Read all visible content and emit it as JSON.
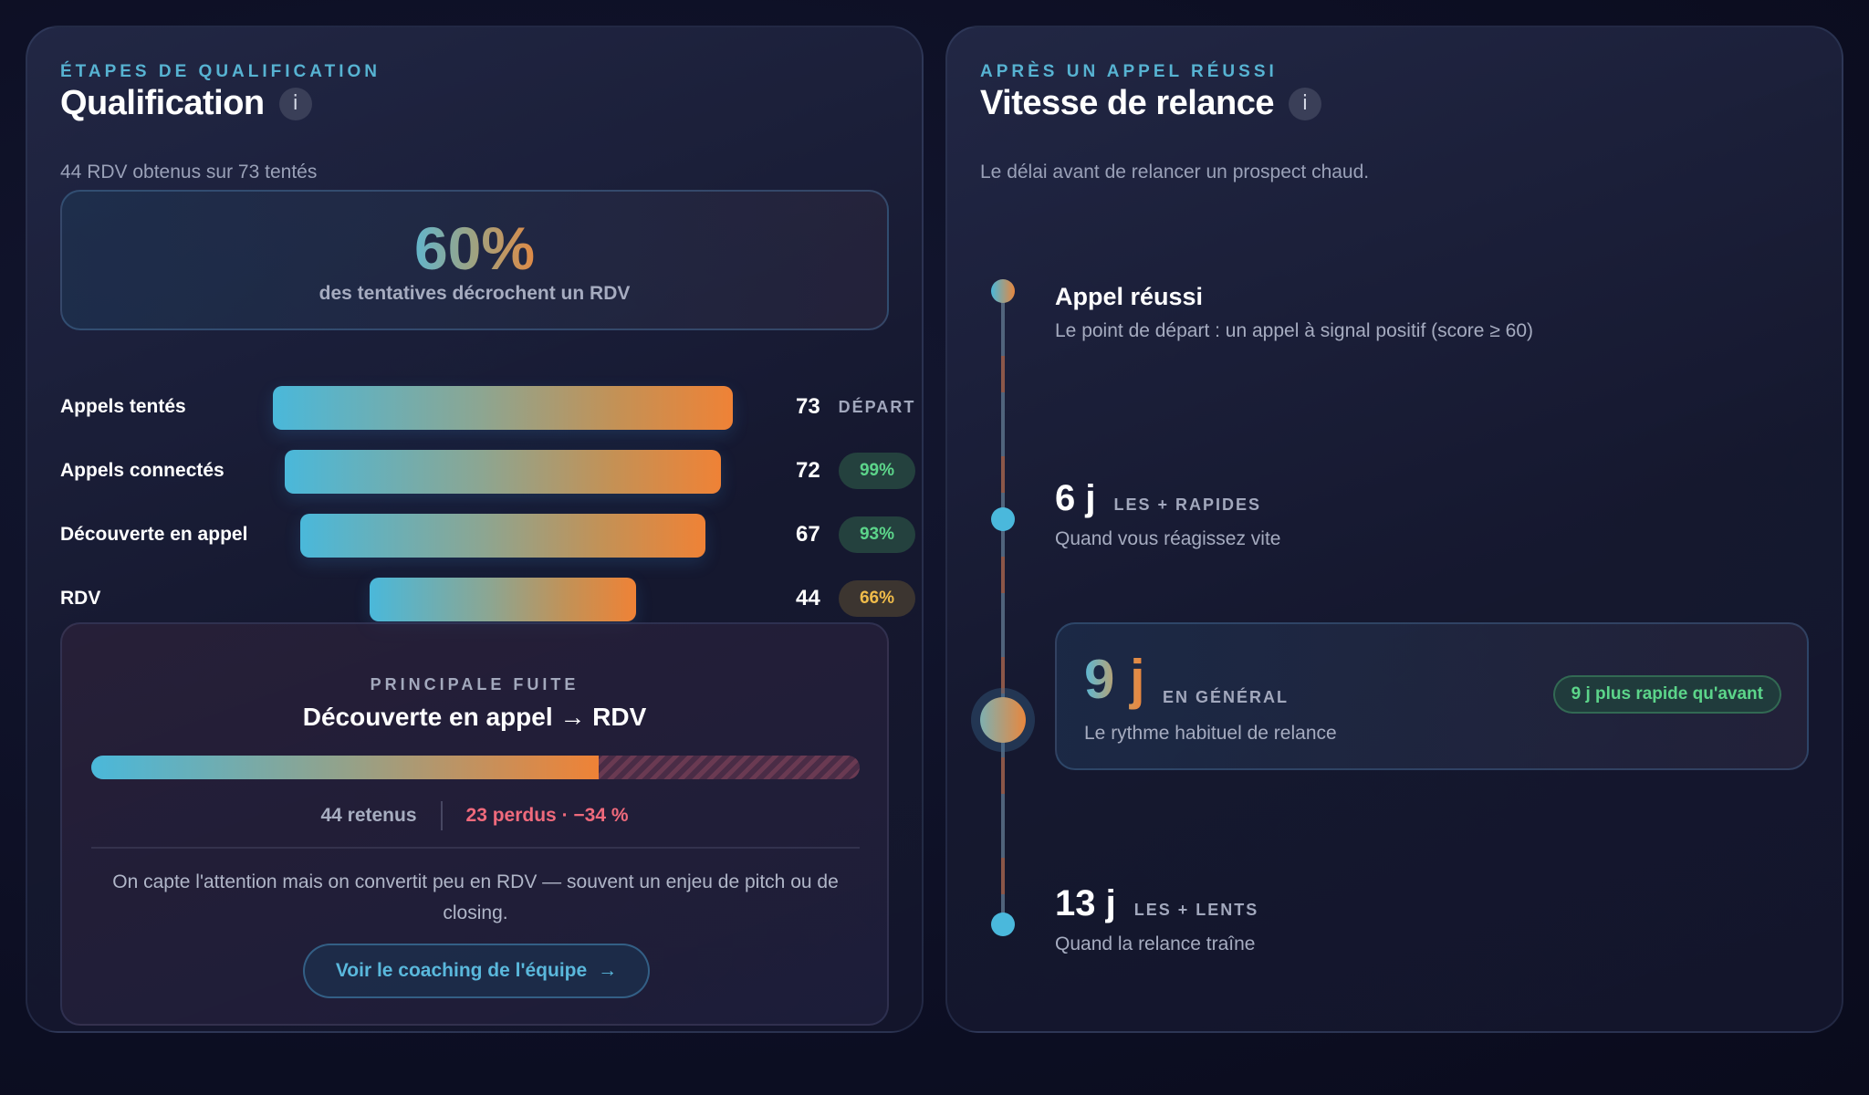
{
  "qualification": {
    "eyebrow": "ÉTAPES DE QUALIFICATION",
    "title": "Qualification",
    "info_icon": "i",
    "subtitle": "44 RDV obtenus sur 73 tentés",
    "hero": {
      "value": "60%",
      "label": "des tentatives décrochent un RDV"
    },
    "funnel": [
      {
        "label": "Appels tentés",
        "value": "73",
        "badge": "DÉPART",
        "count": 73
      },
      {
        "label": "Appels connectés",
        "value": "72",
        "badge": "99%",
        "count": 72
      },
      {
        "label": "Découverte en appel",
        "value": "67",
        "badge": "93%",
        "count": 67
      },
      {
        "label": "RDV",
        "value": "44",
        "badge": "66%",
        "count": 44
      }
    ],
    "leak": {
      "eyebrow": "PRINCIPALE FUITE",
      "title": "Découverte en appel → RDV",
      "retained_fraction": 0.66,
      "retained": "44 retenus",
      "lost": "23 perdus · −34 %",
      "text": "On capte l'attention mais on convertit peu en RDV — souvent un enjeu de pitch ou de closing.",
      "button_label": "Voir le coaching de l'équipe",
      "button_arrow": "→"
    }
  },
  "speed": {
    "eyebrow": "APRÈS UN APPEL RÉUSSI",
    "title": "Vitesse de relance",
    "info_icon": "i",
    "subtitle": "Le délai avant de relancer un prospect chaud.",
    "start": {
      "title": "Appel réussi",
      "desc": "Le point de départ : un appel à signal positif (score ≥ 60)"
    },
    "fast": {
      "value": "6 j",
      "tag": "LES + RAPIDES",
      "desc": "Quand vous réagissez vite"
    },
    "average": {
      "value": "9 j",
      "tag": "EN GÉNÉRAL",
      "desc": "Le rythme habituel de relance",
      "badge": "9 j plus rapide qu'avant"
    },
    "slow": {
      "value": "13 j",
      "tag": "LES + LENTS",
      "desc": "Quand la relance traîne"
    }
  }
}
